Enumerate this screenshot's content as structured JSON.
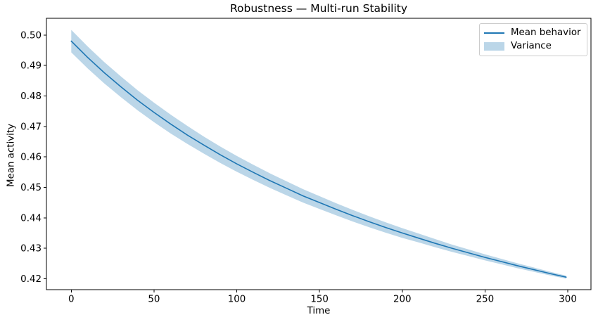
{
  "chart_data": {
    "type": "line",
    "title": "Robustness — Multi-run Stability",
    "xlabel": "Time",
    "ylabel": "Mean activity",
    "xlim": [
      -15,
      314
    ],
    "ylim": [
      0.4164,
      0.5055
    ],
    "grid": false,
    "background": "#ffffff",
    "spine_color": "#000000",
    "legend": {
      "position": "upper right",
      "entries": [
        {
          "label": "Mean behavior",
          "swatch": "line",
          "color": "#1f77b4"
        },
        {
          "label": "Variance",
          "swatch": "patch",
          "color": "#1f77b4",
          "opacity": 0.3
        }
      ]
    },
    "xticks": {
      "values": [
        0,
        50,
        100,
        150,
        200,
        250,
        300
      ],
      "labels": [
        "0",
        "50",
        "100",
        "150",
        "200",
        "250",
        "300"
      ]
    },
    "yticks": {
      "values": [
        0.42,
        0.43,
        0.44,
        0.45,
        0.46,
        0.47,
        0.48,
        0.49,
        0.5
      ],
      "labels": [
        "0.42",
        "0.43",
        "0.44",
        "0.45",
        "0.46",
        "0.47",
        "0.48",
        "0.49",
        "0.50"
      ]
    },
    "x": [
      0,
      10,
      20,
      30,
      40,
      50,
      60,
      70,
      80,
      90,
      100,
      110,
      120,
      130,
      140,
      150,
      160,
      170,
      180,
      190,
      200,
      210,
      220,
      230,
      240,
      250,
      260,
      270,
      280,
      290,
      299
    ],
    "series": [
      {
        "name": "Mean behavior",
        "type": "line",
        "color": "#1f77b4",
        "width": 1.6,
        "values": [
          0.498,
          0.4926,
          0.4876,
          0.483,
          0.4786,
          0.4746,
          0.4708,
          0.4672,
          0.4639,
          0.4607,
          0.4577,
          0.4549,
          0.4522,
          0.4497,
          0.4472,
          0.445,
          0.4428,
          0.4407,
          0.4387,
          0.4368,
          0.435,
          0.4333,
          0.4316,
          0.43,
          0.4285,
          0.427,
          0.4256,
          0.4242,
          0.4229,
          0.4216,
          0.4205
        ]
      },
      {
        "name": "Variance",
        "type": "band",
        "color": "#1f77b4",
        "opacity": 0.3,
        "upper": [
          0.5017,
          0.4962,
          0.4911,
          0.4864,
          0.4819,
          0.4778,
          0.4739,
          0.4702,
          0.4667,
          0.4634,
          0.4603,
          0.4574,
          0.4546,
          0.452,
          0.4494,
          0.4471,
          0.4448,
          0.4426,
          0.4405,
          0.4385,
          0.4366,
          0.4348,
          0.433,
          0.4312,
          0.4296,
          0.428,
          0.4265,
          0.425,
          0.4236,
          0.4222,
          0.421
        ],
        "lower": [
          0.4943,
          0.489,
          0.4841,
          0.4796,
          0.4753,
          0.4714,
          0.4677,
          0.4643,
          0.4611,
          0.458,
          0.4551,
          0.4524,
          0.4498,
          0.4474,
          0.445,
          0.4429,
          0.4408,
          0.4388,
          0.4369,
          0.4351,
          0.4334,
          0.4319,
          0.4303,
          0.4288,
          0.4274,
          0.426,
          0.4247,
          0.4234,
          0.4222,
          0.421,
          0.42
        ]
      }
    ]
  }
}
